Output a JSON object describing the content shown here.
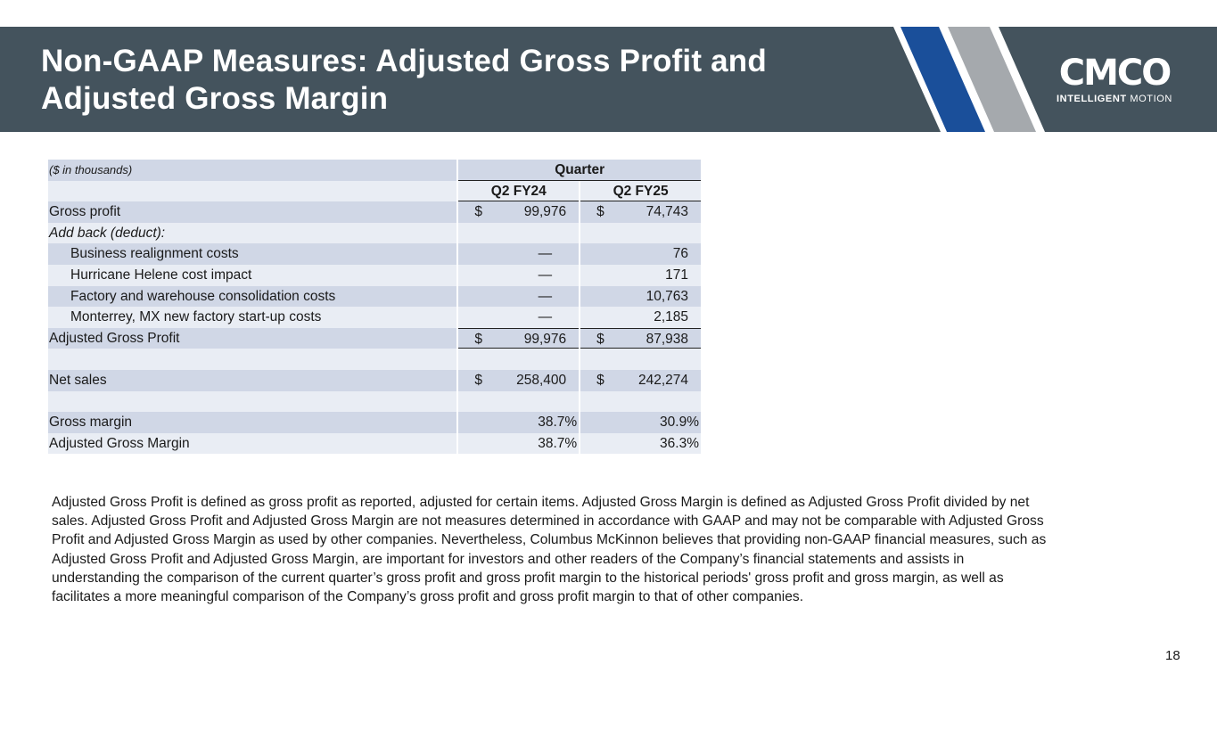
{
  "header": {
    "title_lines": [
      "Non-GAAP Measures: Adjusted Gross Profit and",
      "Adjusted Gross Margin"
    ],
    "logo": {
      "mark": "CMCO",
      "tagline_bold": "INTELLIGENT",
      "tagline": "MOTION"
    },
    "colors": {
      "band": "#44535d",
      "blue_stripe": "#1a4f9a",
      "gray_stripe": "#a5a9ad"
    }
  },
  "table": {
    "units_note": "($ in thousands)",
    "group_header": "Quarter",
    "columns": [
      "Q2 FY24",
      "Q2 FY25"
    ],
    "rows": [
      {
        "label": "Gross profit",
        "v1": "99,976",
        "v2": "74,743",
        "cur": "$"
      },
      {
        "label": "Add back (deduct):",
        "v1": "",
        "v2": ""
      },
      {
        "label": "Business realignment costs",
        "v1": "—",
        "v2": "76"
      },
      {
        "label": "Hurricane Helene cost impact",
        "v1": "—",
        "v2": "171"
      },
      {
        "label": "Factory and warehouse consolidation costs",
        "v1": "—",
        "v2": "10,763"
      },
      {
        "label": "Monterrey, MX new factory start-up costs",
        "v1": "—",
        "v2": "2,185"
      },
      {
        "label": "Adjusted Gross Profit",
        "v1": "99,976",
        "v2": "87,938",
        "cur": "$"
      },
      {
        "label": "",
        "v1": "",
        "v2": ""
      },
      {
        "label": "Net sales",
        "v1": "258,400",
        "v2": "242,274",
        "cur": "$"
      },
      {
        "label": "",
        "v1": "",
        "v2": ""
      },
      {
        "label": "Gross margin",
        "v1": "38.7%",
        "v2": "30.9%"
      },
      {
        "label": "Adjusted Gross Margin",
        "v1": "38.7%",
        "v2": "36.3%"
      }
    ]
  },
  "footnote_lines": [
    "Adjusted Gross Profit is defined as gross profit as reported, adjusted for certain items.  Adjusted Gross Margin is defined as Adjusted Gross Profit divided by net",
    "sales.  Adjusted Gross Profit and Adjusted Gross Margin are not measures determined in accordance with GAAP and may not be comparable with Adjusted Gross",
    "Profit and Adjusted Gross Margin as used by other companies.  Nevertheless, Columbus McKinnon believes that providing non-GAAP financial measures, such as",
    "Adjusted Gross Profit and Adjusted Gross Margin, are important for investors and other readers of the Company’s financial statements and assists in",
    "understanding the comparison of the current quarter’s gross profit and gross profit margin to the historical periods' gross profit and gross margin, as well as",
    "facilitates a more meaningful comparison of the Company’s gross profit and gross profit margin to that of other companies."
  ],
  "page_number": "18"
}
